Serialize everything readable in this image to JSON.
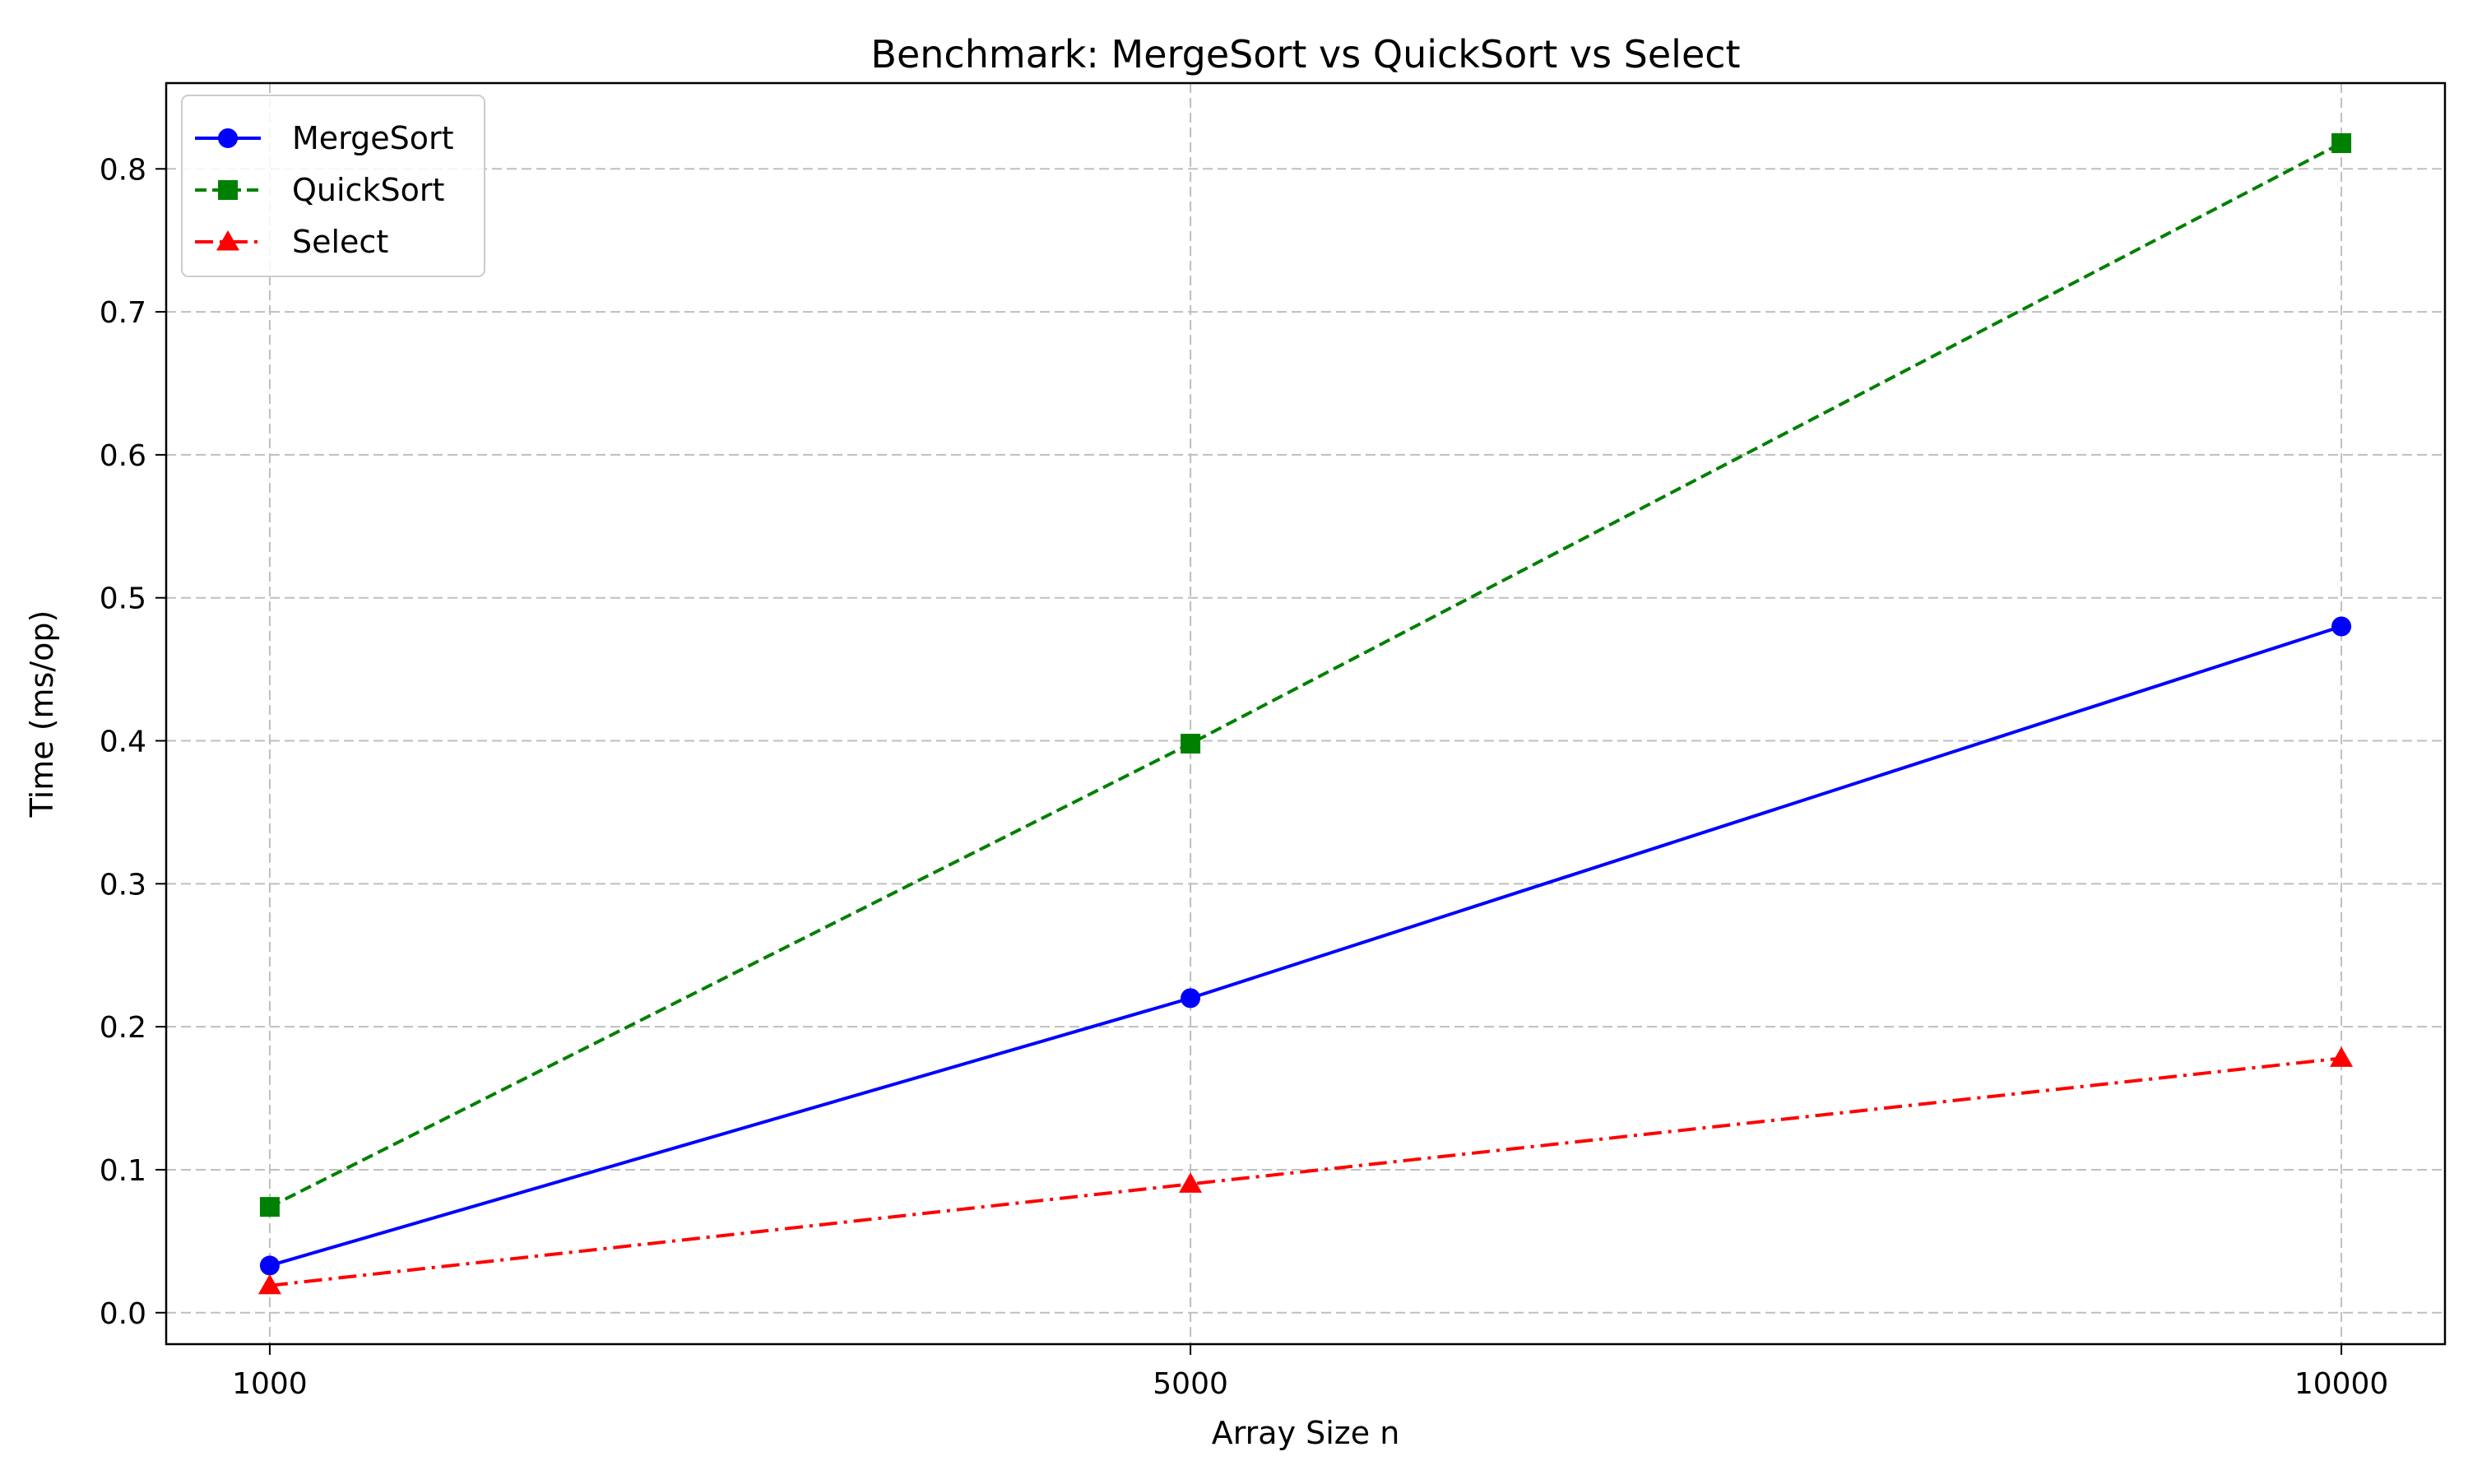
{
  "chart_data": {
    "type": "line",
    "title": "Benchmark: MergeSort vs QuickSort vs Select",
    "xlabel": "Array Size n",
    "ylabel": "Time (ms/op)",
    "x": [
      1000,
      5000,
      10000
    ],
    "x_tick_labels": [
      "1000",
      "5000",
      "10000"
    ],
    "xlim": [
      550,
      10450
    ],
    "ylim": [
      -0.022,
      0.86
    ],
    "y_ticks": [
      0.0,
      0.1,
      0.2,
      0.3,
      0.4,
      0.5,
      0.6,
      0.7,
      0.8
    ],
    "y_tick_labels": [
      "0.0",
      "0.1",
      "0.2",
      "0.3",
      "0.4",
      "0.5",
      "0.6",
      "0.7",
      "0.8"
    ],
    "grid": true,
    "legend_position": "upper-left",
    "series": [
      {
        "name": "MergeSort",
        "values": [
          0.033,
          0.22,
          0.48
        ],
        "color": "#0000ff",
        "line_style": "solid",
        "marker": "circle"
      },
      {
        "name": "QuickSort",
        "values": [
          0.074,
          0.398,
          0.818
        ],
        "color": "#008000",
        "line_style": "dashed",
        "marker": "square"
      },
      {
        "name": "Select",
        "values": [
          0.019,
          0.09,
          0.178
        ],
        "color": "#ff0000",
        "line_style": "dashdot",
        "marker": "triangle"
      }
    ]
  }
}
